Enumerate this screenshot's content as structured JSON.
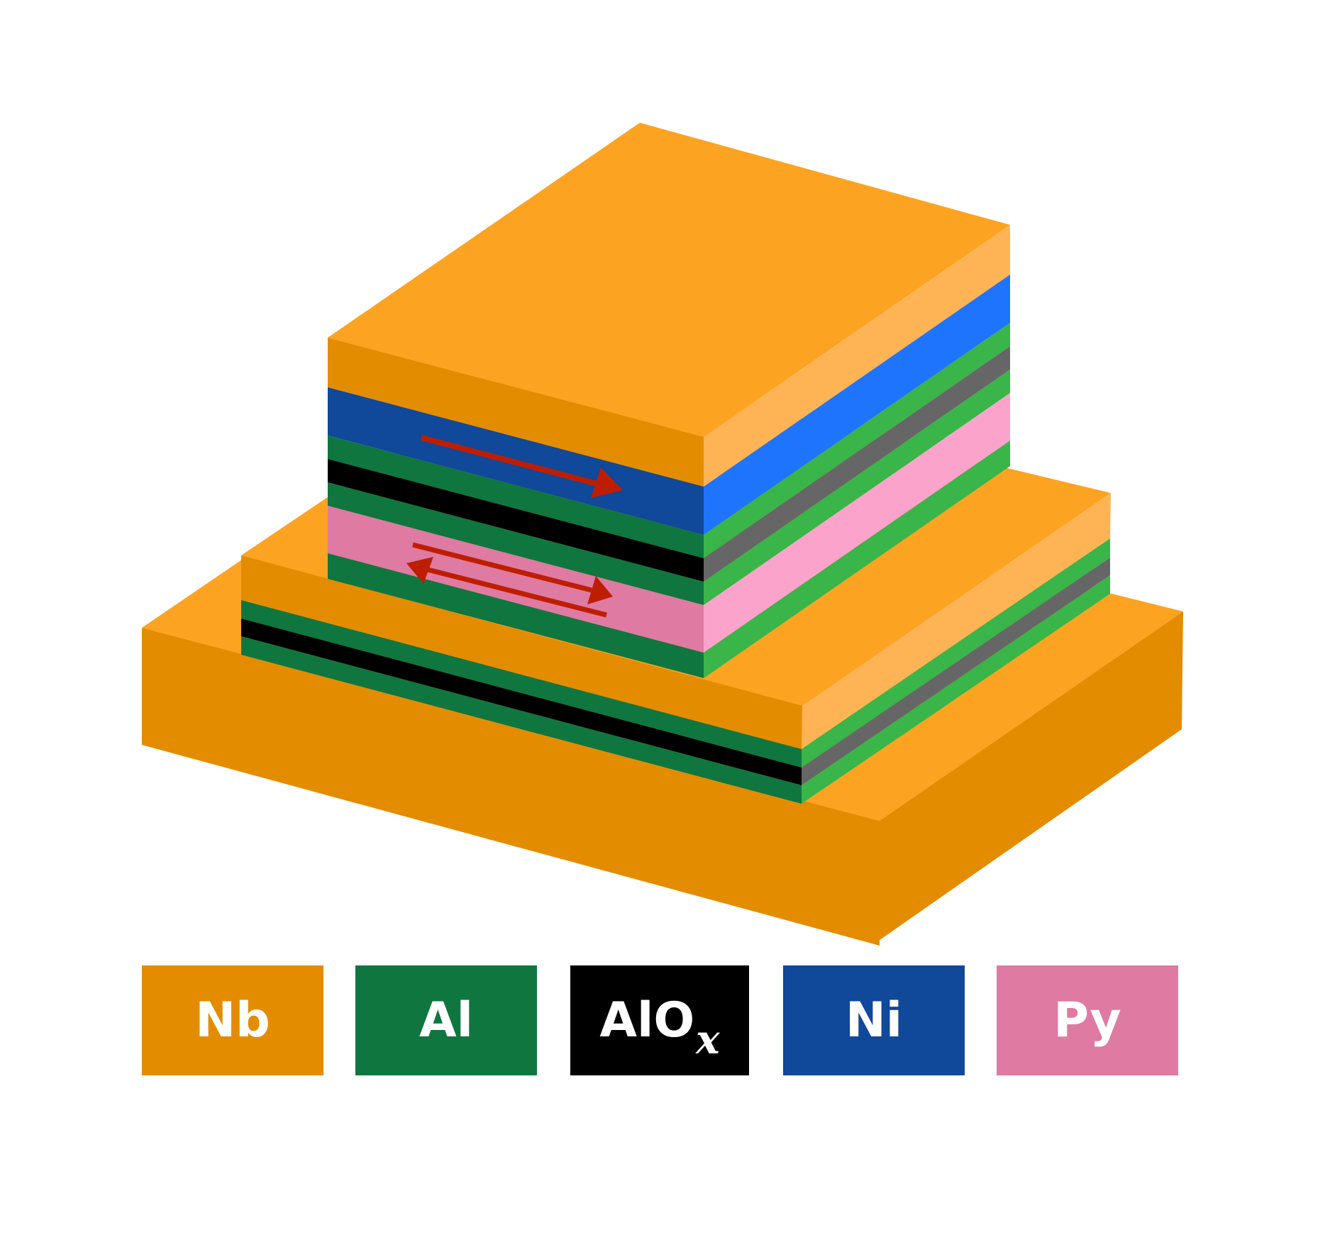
{
  "colors": {
    "nb_front": "#E48C00",
    "nb_top": "#FCA321",
    "nb_side": "#FEB455",
    "al_front": "#0F7640",
    "al_side": "#39B549",
    "alox_front": "#000000",
    "alox_side": "#666666",
    "ni_front": "#10489A",
    "ni_side": "#1E74FD",
    "py_front": "#DF7AA2",
    "py_side": "#FCA3CC",
    "arrow": "#BE1E00"
  },
  "legend": [
    {
      "label": "Nb",
      "sub": "",
      "color": "#E48C00"
    },
    {
      "label": "Al",
      "sub": "",
      "color": "#0F7640"
    },
    {
      "label": "AlO",
      "sub": "x",
      "color": "#000000"
    },
    {
      "label": "Ni",
      "sub": "",
      "color": "#10489A"
    },
    {
      "label": "Py",
      "sub": "",
      "color": "#DF7AA2"
    }
  ]
}
